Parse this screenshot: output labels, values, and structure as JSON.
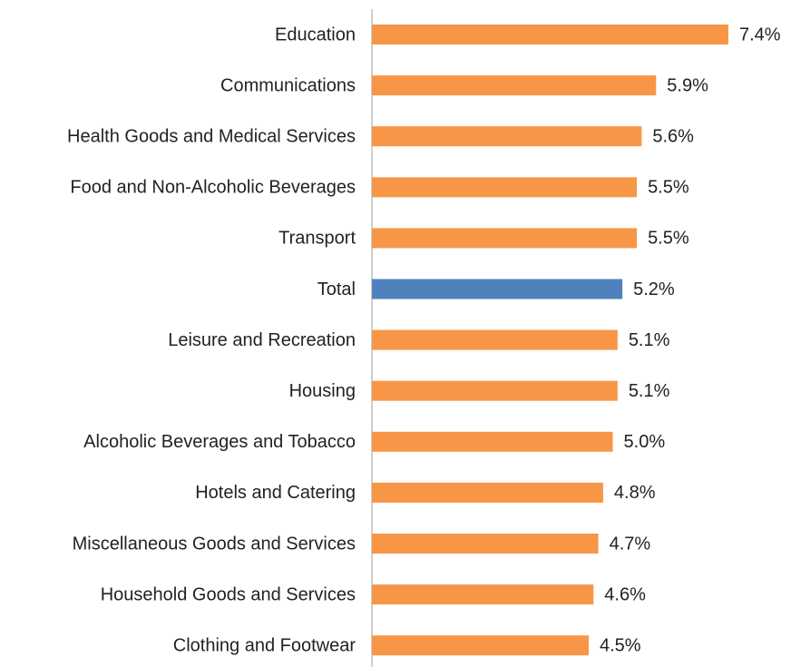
{
  "chart_data": {
    "type": "barh",
    "categories": [
      "Education",
      "Communications",
      "Health Goods and Medical Services",
      "Food and Non-Alcoholic Beverages",
      "Transport",
      "Total",
      "Leisure and Recreation",
      "Housing",
      "Alcoholic Beverages and Tobacco",
      "Hotels and Catering",
      "Miscellaneous Goods and Services",
      "Household Goods and Services",
      "Clothing and Footwear"
    ],
    "values": [
      7.4,
      5.9,
      5.6,
      5.5,
      5.5,
      5.2,
      5.1,
      5.1,
      5.0,
      4.8,
      4.7,
      4.6,
      4.5
    ],
    "value_labels": [
      "7.4%",
      "5.9%",
      "5.6%",
      "5.5%",
      "5.5%",
      "5.2%",
      "5.1%",
      "5.1%",
      "5.0%",
      "4.8%",
      "4.7%",
      "4.6%",
      "4.5%"
    ],
    "colors": [
      "#f79646",
      "#f79646",
      "#f79646",
      "#f79646",
      "#f79646",
      "#4f81bd",
      "#f79646",
      "#f79646",
      "#f79646",
      "#f79646",
      "#f79646",
      "#f79646",
      "#f79646"
    ],
    "xlim": [
      0,
      8.7
    ]
  }
}
